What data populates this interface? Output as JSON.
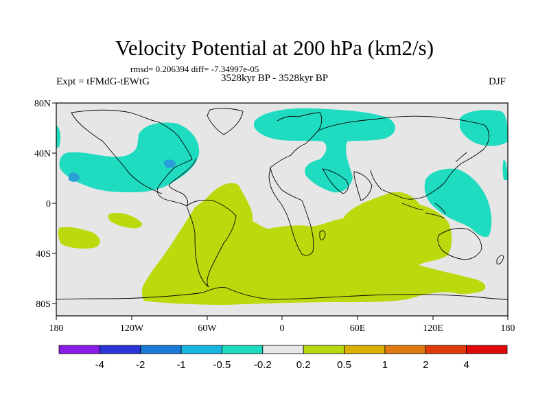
{
  "title": "Velocity Potential at 200 hPa (km2/s)",
  "rmsd_line": "rmsd= 0.206394 diff= -7.34997e-05",
  "expt_line": "Expt = tFMdG-tEWtG",
  "period_line": "3528kyr BP - 3528kyr BP",
  "season": "DJF",
  "map": {
    "lon_labels": [
      "180",
      "120W",
      "60W",
      "0",
      "60E",
      "120E",
      "180"
    ],
    "lat_labels": [
      "80N",
      "40N",
      "0",
      "40S",
      "80S"
    ],
    "ocean_color": "#e6e6e6",
    "coast_color": "#000000"
  },
  "colorbar": {
    "labels": [
      "-4",
      "-2",
      "-1",
      "-0.5",
      "-0.2",
      "0.2",
      "0.5",
      "1",
      "2",
      "4"
    ],
    "colors": [
      "#8a1ce6",
      "#2a36d8",
      "#1a7ad6",
      "#18b6e0",
      "#1fdcc0",
      "#e6e6e6",
      "#b8d90e",
      "#dcb000",
      "#e07a10",
      "#e03a0a",
      "#e00808"
    ]
  },
  "regions": {
    "positive_color": "#bcd90e",
    "negative_color": "#1fdcc0",
    "negative_strong_color": "#2aa0d8"
  }
}
